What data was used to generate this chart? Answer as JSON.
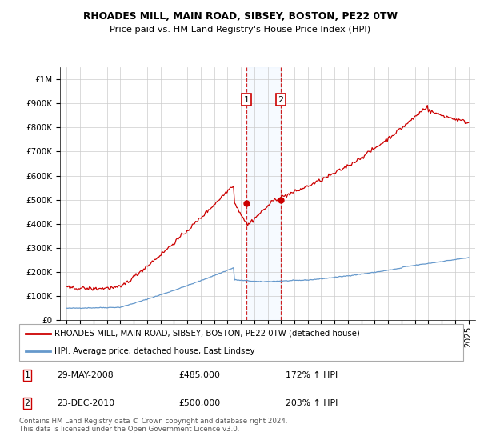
{
  "title1": "RHOADES MILL, MAIN ROAD, SIBSEY, BOSTON, PE22 0TW",
  "title2": "Price paid vs. HM Land Registry's House Price Index (HPI)",
  "legend_label1": "RHOADES MILL, MAIN ROAD, SIBSEY, BOSTON, PE22 0TW (detached house)",
  "legend_label2": "HPI: Average price, detached house, East Lindsey",
  "footnote": "Contains HM Land Registry data © Crown copyright and database right 2024.\nThis data is licensed under the Open Government Licence v3.0.",
  "sale1_date": "29-MAY-2008",
  "sale1_price": "£485,000",
  "sale1_hpi": "172% ↑ HPI",
  "sale1_year": 2008.41,
  "sale1_value": 485000,
  "sale2_date": "23-DEC-2010",
  "sale2_price": "£500,000",
  "sale2_hpi": "203% ↑ HPI",
  "sale2_year": 2010.98,
  "sale2_value": 500000,
  "red_color": "#cc0000",
  "blue_color": "#6699cc",
  "shade_color": "#ddeeff",
  "grid_color": "#cccccc",
  "ylim": [
    0,
    1050000
  ],
  "yticks": [
    0,
    100000,
    200000,
    300000,
    400000,
    500000,
    600000,
    700000,
    800000,
    900000,
    1000000
  ],
  "ytick_labels": [
    "£0",
    "£100K",
    "£200K",
    "£300K",
    "£400K",
    "£500K",
    "£600K",
    "£700K",
    "£800K",
    "£900K",
    "£1M"
  ],
  "xlim_start": 1994.5,
  "xlim_end": 2025.5,
  "xticks": [
    1995,
    1996,
    1997,
    1998,
    1999,
    2000,
    2001,
    2002,
    2003,
    2004,
    2005,
    2006,
    2007,
    2008,
    2009,
    2010,
    2011,
    2012,
    2013,
    2014,
    2015,
    2016,
    2017,
    2018,
    2019,
    2020,
    2021,
    2022,
    2023,
    2024,
    2025
  ]
}
